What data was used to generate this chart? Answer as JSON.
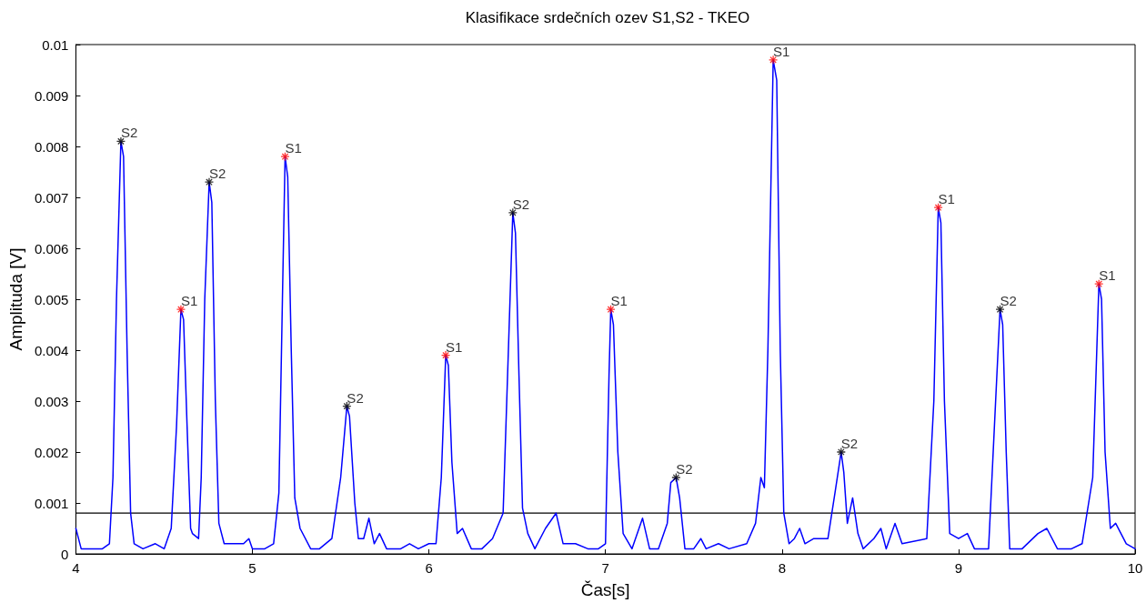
{
  "chart_data": {
    "type": "line",
    "title": "Klasifikace srdečních ozev S1,S2 - TKEO",
    "xlabel": "Čas[s]",
    "ylabel": "Amplituda [V]",
    "xlim": [
      4,
      10
    ],
    "xticks": [
      4,
      5,
      6,
      7,
      8,
      9,
      10
    ],
    "ylim": [
      0,
      0.01
    ],
    "yticks": [
      0,
      0.001,
      0.002,
      0.003,
      0.004,
      0.005,
      0.006,
      0.007,
      0.008,
      0.009,
      0.01
    ],
    "grid": false,
    "legend": false,
    "ref_lines": [
      {
        "axis": "y",
        "value": 0.0008,
        "color": "#000000"
      }
    ],
    "series": [
      {
        "color": "#0000ff",
        "marker": "none",
        "line_style": "solid",
        "x": [
          4.0,
          4.03,
          4.08,
          4.15,
          4.19,
          4.21,
          4.23,
          4.255,
          4.27,
          4.29,
          4.31,
          4.33,
          4.38,
          4.45,
          4.5,
          4.54,
          4.57,
          4.595,
          4.61,
          4.63,
          4.65,
          4.66,
          4.695,
          4.71,
          4.73,
          4.755,
          4.77,
          4.79,
          4.81,
          4.84,
          4.9,
          4.95,
          4.98,
          5.0,
          5.07,
          5.12,
          5.15,
          5.17,
          5.185,
          5.2,
          5.22,
          5.24,
          5.27,
          5.33,
          5.38,
          5.45,
          5.5,
          5.535,
          5.55,
          5.58,
          5.6,
          5.63,
          5.66,
          5.69,
          5.72,
          5.76,
          5.84,
          5.89,
          5.94,
          6.0,
          6.04,
          6.07,
          6.095,
          6.11,
          6.13,
          6.16,
          6.19,
          6.24,
          6.3,
          6.36,
          6.42,
          6.45,
          6.475,
          6.49,
          6.51,
          6.53,
          6.56,
          6.6,
          6.66,
          6.72,
          6.76,
          6.83,
          6.9,
          6.96,
          7.0,
          7.02,
          7.03,
          7.045,
          7.07,
          7.1,
          7.15,
          7.21,
          7.25,
          7.3,
          7.35,
          7.37,
          7.4,
          7.42,
          7.45,
          7.5,
          7.54,
          7.57,
          7.64,
          7.7,
          7.8,
          7.85,
          7.88,
          7.9,
          7.92,
          7.95,
          7.97,
          7.99,
          8.01,
          8.04,
          8.07,
          8.1,
          8.13,
          8.18,
          8.22,
          8.26,
          8.3,
          8.335,
          8.35,
          8.37,
          8.4,
          8.43,
          8.46,
          8.52,
          8.56,
          8.59,
          8.64,
          8.68,
          8.82,
          8.86,
          8.885,
          8.9,
          8.92,
          8.95,
          9.0,
          9.05,
          9.09,
          9.17,
          9.21,
          9.235,
          9.25,
          9.27,
          9.29,
          9.36,
          9.45,
          9.5,
          9.56,
          9.64,
          9.7,
          9.76,
          9.795,
          9.81,
          9.83,
          9.86,
          9.89,
          9.95,
          10.0
        ],
        "values": [
          0.0005,
          0.0001,
          0.0001,
          0.0001,
          0.0002,
          0.0015,
          0.005,
          0.0081,
          0.0078,
          0.004,
          0.0008,
          0.0002,
          0.0001,
          0.0002,
          0.0001,
          0.0005,
          0.0025,
          0.0048,
          0.0046,
          0.0025,
          0.0005,
          0.0004,
          0.0003,
          0.0015,
          0.005,
          0.0073,
          0.0069,
          0.003,
          0.0006,
          0.0002,
          0.0002,
          0.0002,
          0.0003,
          0.0001,
          0.0001,
          0.0002,
          0.0012,
          0.005,
          0.0078,
          0.0074,
          0.004,
          0.0011,
          0.0005,
          0.0001,
          0.0001,
          0.0003,
          0.0015,
          0.0029,
          0.0027,
          0.001,
          0.0003,
          0.0003,
          0.0007,
          0.0002,
          0.0004,
          0.0001,
          0.0001,
          0.0002,
          0.0001,
          0.0002,
          0.0002,
          0.0015,
          0.0039,
          0.0037,
          0.0018,
          0.0004,
          0.0005,
          0.0001,
          0.0001,
          0.0003,
          0.0008,
          0.004,
          0.0067,
          0.0063,
          0.0035,
          0.0009,
          0.0004,
          0.0001,
          0.0005,
          0.0008,
          0.0002,
          0.0002,
          0.0001,
          0.0001,
          0.0002,
          0.0035,
          0.0048,
          0.0045,
          0.002,
          0.0004,
          0.0001,
          0.0007,
          0.0001,
          0.0001,
          0.0006,
          0.0014,
          0.0015,
          0.0011,
          0.0001,
          0.0001,
          0.0003,
          0.0001,
          0.0002,
          0.0001,
          0.0002,
          0.0006,
          0.0015,
          0.0013,
          0.004,
          0.0097,
          0.0093,
          0.004,
          0.0008,
          0.0002,
          0.0003,
          0.0005,
          0.0002,
          0.0003,
          0.0003,
          0.0003,
          0.0012,
          0.002,
          0.0016,
          0.0006,
          0.0011,
          0.0004,
          0.0001,
          0.0003,
          0.0005,
          0.0001,
          0.0006,
          0.0002,
          0.0003,
          0.003,
          0.0068,
          0.0065,
          0.003,
          0.0004,
          0.0003,
          0.0004,
          0.0001,
          0.0001,
          0.003,
          0.0048,
          0.0045,
          0.002,
          0.0001,
          0.0001,
          0.0004,
          0.0005,
          0.0001,
          0.0001,
          0.0002,
          0.0015,
          0.0053,
          0.005,
          0.002,
          0.0005,
          0.0006,
          0.0002,
          0.0001
        ]
      },
      {
        "type": "scatter",
        "name": "S1",
        "color": "#ff0000",
        "marker": "cross",
        "x": [
          4.595,
          5.185,
          6.095,
          7.03,
          7.95,
          8.885,
          9.795
        ],
        "values": [
          0.0048,
          0.0078,
          0.0039,
          0.0048,
          0.0097,
          0.0068,
          0.0053
        ]
      },
      {
        "type": "scatter",
        "name": "S2",
        "color": "#000000",
        "marker": "cross",
        "x": [
          4.255,
          4.755,
          5.535,
          6.475,
          7.4,
          8.335,
          9.235
        ],
        "values": [
          0.0081,
          0.0073,
          0.0029,
          0.0067,
          0.0015,
          0.002,
          0.0048
        ]
      }
    ]
  }
}
